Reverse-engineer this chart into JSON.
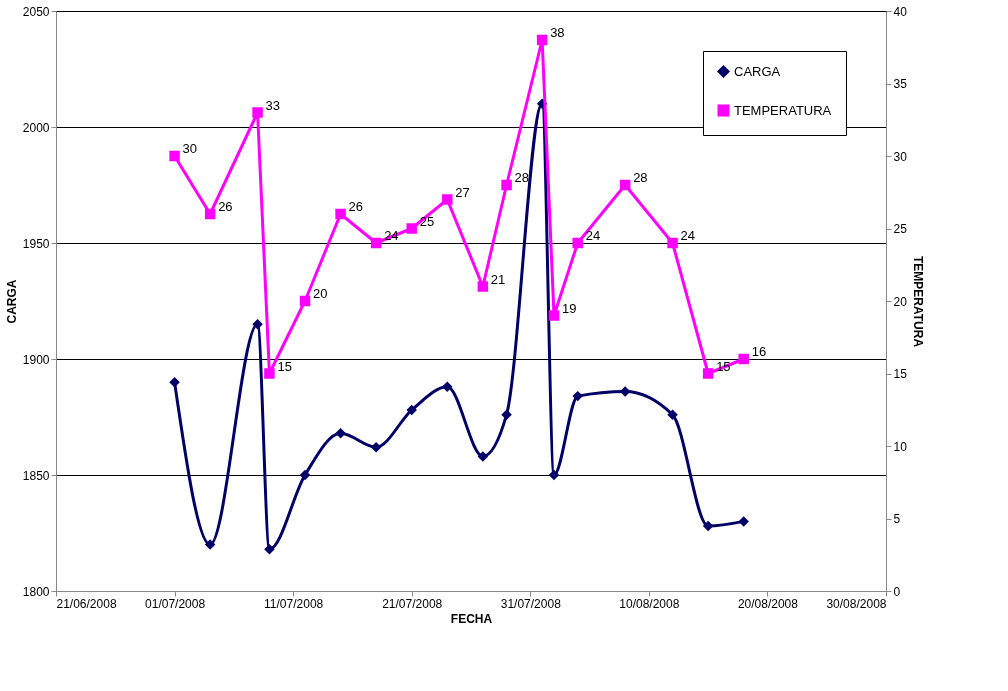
{
  "chart_data": {
    "type": "line",
    "xlabel": "FECHA",
    "ylabel": "CARGA",
    "y2label": "TEMPERATURA",
    "x": [
      "2008-07-01",
      "2008-07-04",
      "2008-07-08",
      "2008-07-09",
      "2008-07-12",
      "2008-07-15",
      "2008-07-18",
      "2008-07-21",
      "2008-07-24",
      "2008-07-27",
      "2008-07-29",
      "2008-08-01",
      "2008-08-02",
      "2008-08-04",
      "2008-08-08",
      "2008-08-12",
      "2008-08-15",
      "2008-08-18"
    ],
    "series": [
      {
        "name": "CARGA",
        "color": "#000066",
        "marker": "diamond",
        "values": [
          1890,
          1820,
          1915,
          1818,
          1850,
          1868,
          1862,
          1878,
          1888,
          1858,
          1876,
          2010,
          1850,
          1884,
          1886,
          1876,
          1828,
          1830
        ]
      },
      {
        "name": "TEMPERATURA",
        "color": "#ff00ff",
        "marker": "square",
        "axis": "y2",
        "values": [
          30,
          26,
          33,
          15,
          20,
          26,
          24,
          25,
          27,
          21,
          28,
          38,
          19,
          24,
          28,
          24,
          15,
          16
        ],
        "value_labels": [
          "30",
          "26",
          "33",
          "15",
          "20",
          "26",
          "24",
          "25",
          "27",
          "21",
          "28",
          "38",
          "19",
          "24",
          "28",
          "24",
          "15",
          "16"
        ]
      }
    ],
    "xlim": [
      "2008-06-21",
      "2008-08-30"
    ],
    "xticks": [
      {
        "value": "2008-06-21",
        "label": "21/06/2008"
      },
      {
        "value": "2008-07-01",
        "label": "01/07/2008"
      },
      {
        "value": "2008-07-11",
        "label": "11/07/2008"
      },
      {
        "value": "2008-07-21",
        "label": "21/07/2008"
      },
      {
        "value": "2008-07-31",
        "label": "31/07/2008"
      },
      {
        "value": "2008-08-10",
        "label": "10/08/2008"
      },
      {
        "value": "2008-08-20",
        "label": "20/08/2008"
      },
      {
        "value": "2008-08-30",
        "label": "30/08/2008"
      }
    ],
    "ylim": [
      1800,
      2050
    ],
    "yticks": [
      1800,
      1850,
      1900,
      1950,
      2000,
      2050
    ],
    "y2lim": [
      0,
      40
    ],
    "y2ticks": [
      0,
      5,
      10,
      15,
      20,
      25,
      30,
      35,
      40
    ],
    "grid": "y",
    "legend": "top right",
    "line_style": "solid"
  }
}
